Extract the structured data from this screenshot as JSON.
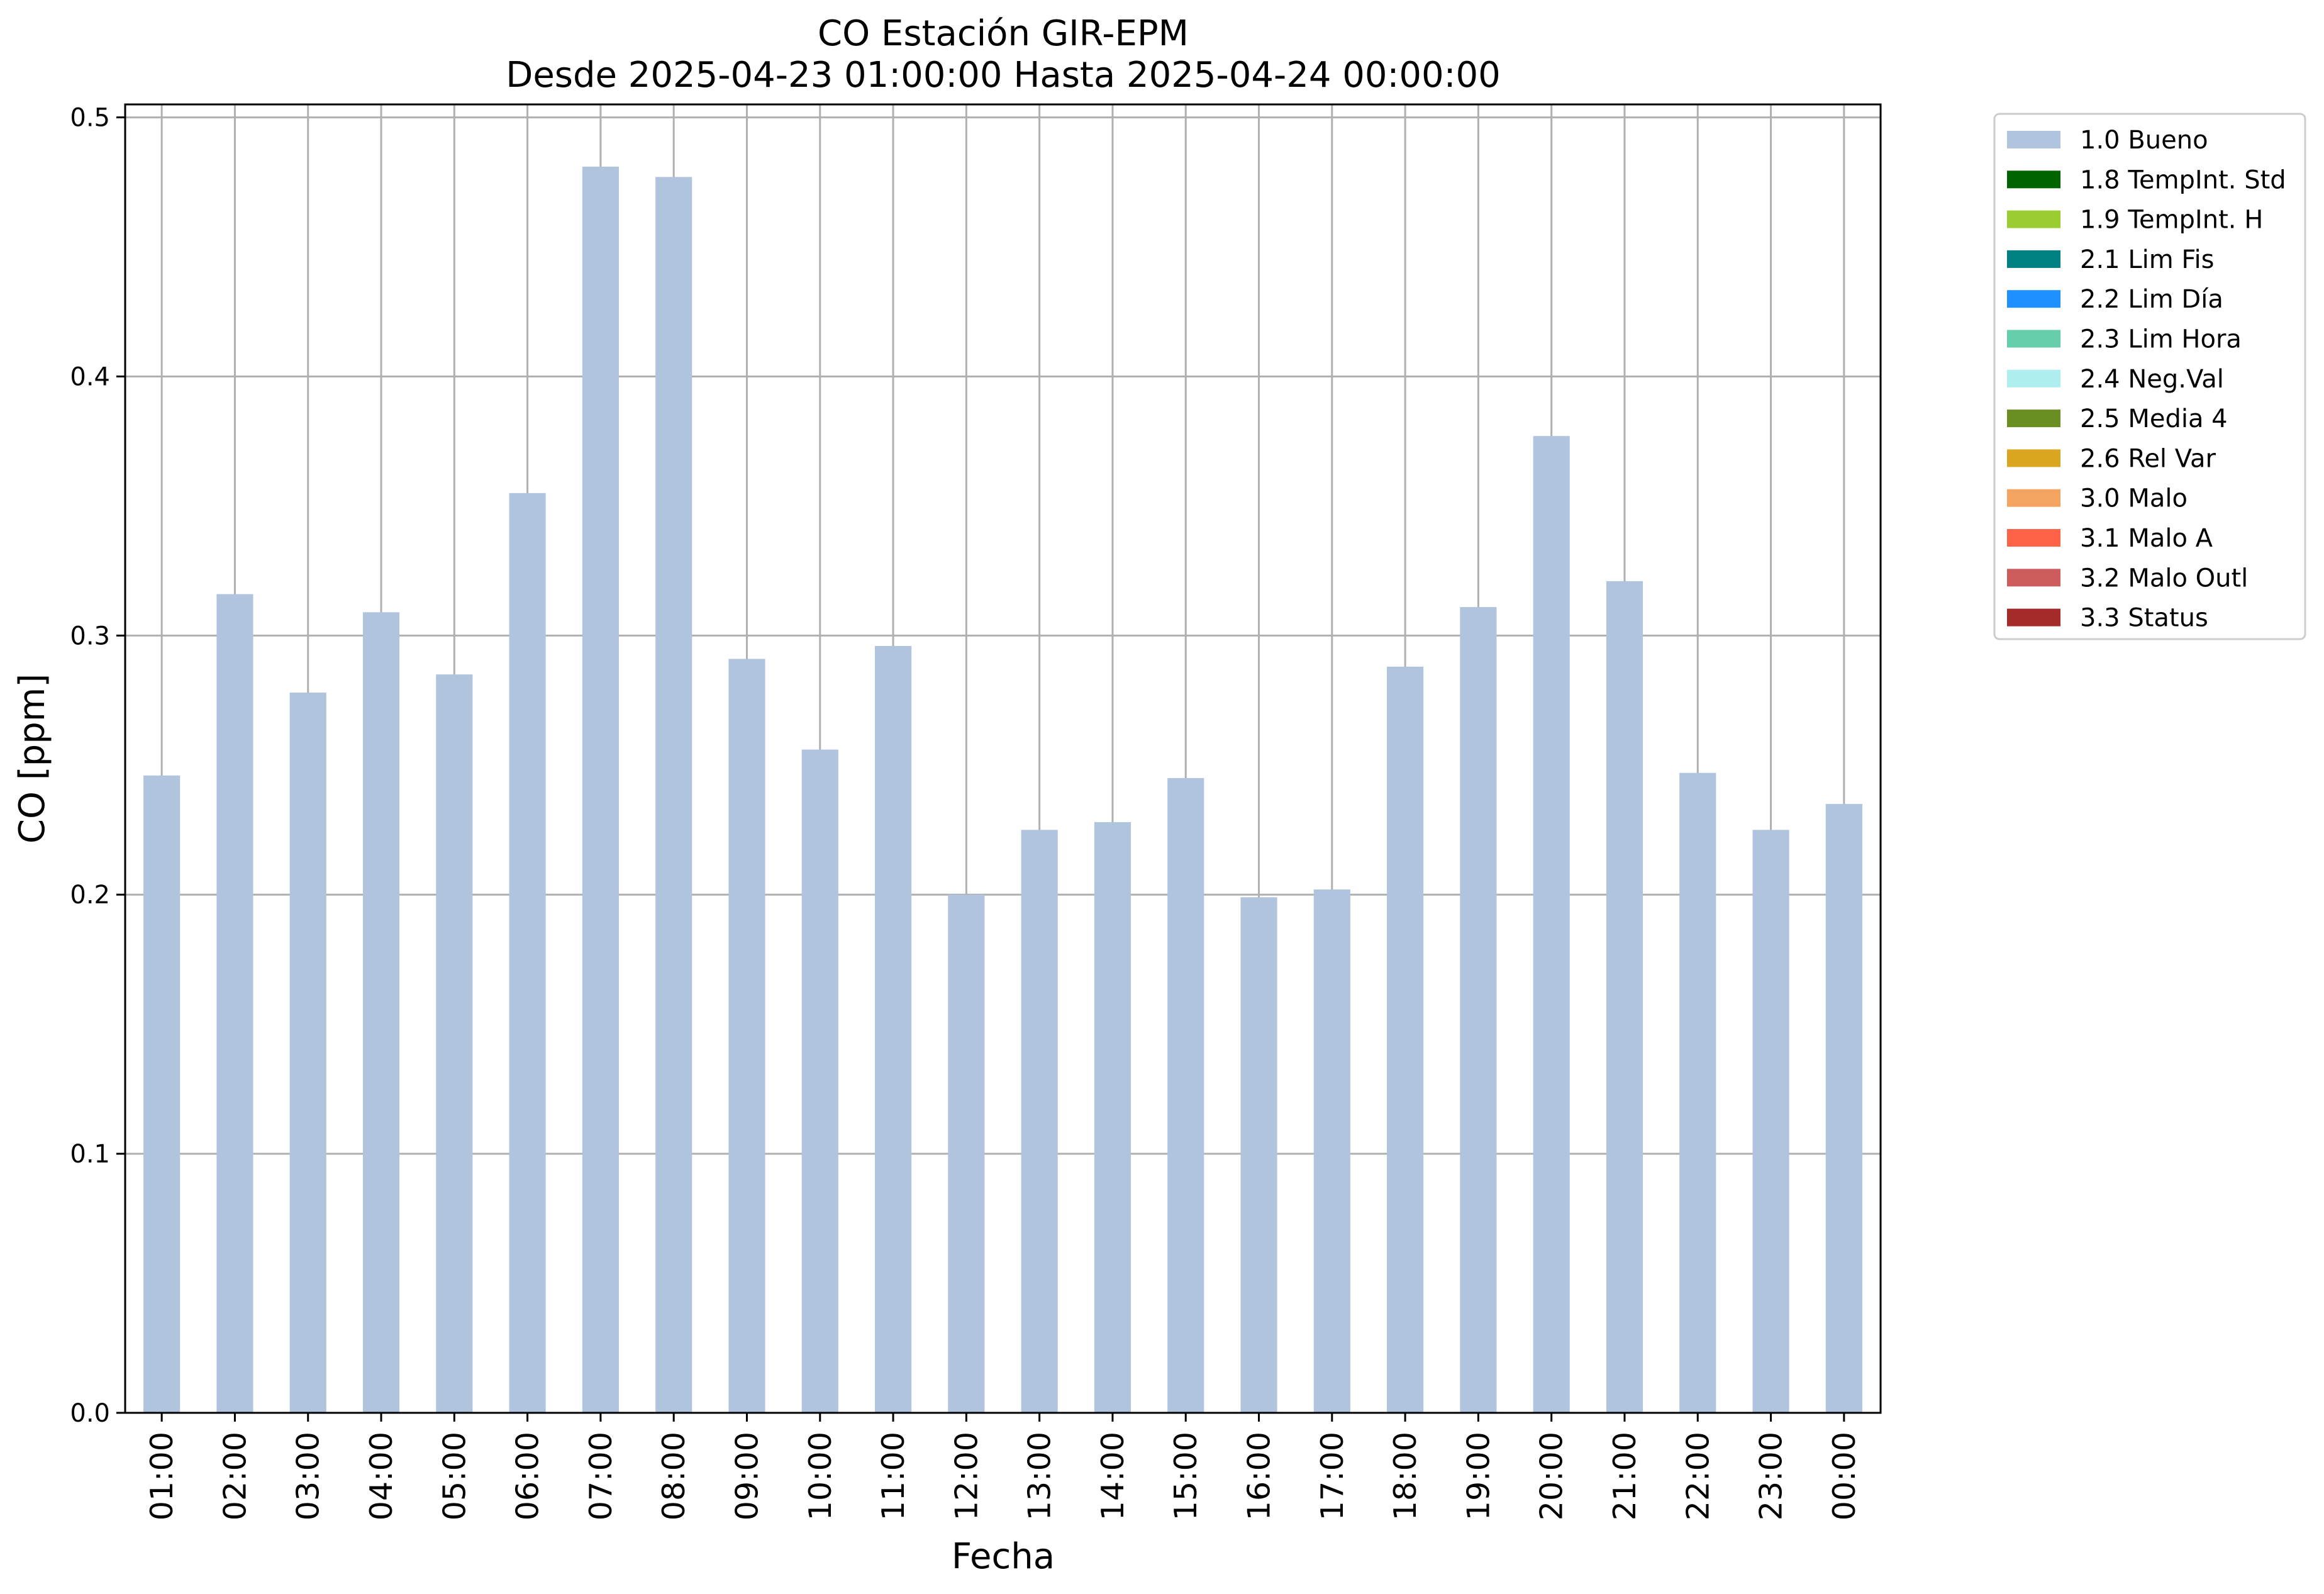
{
  "chart_data": {
    "type": "bar",
    "title": "CO Estación GIR-EPM",
    "subtitle": "Desde 2025-04-23 01:00:00 Hasta 2025-04-24 00:00:00",
    "xlabel": "Fecha",
    "ylabel": "CO [ppm]",
    "ylim": [
      0,
      0.505
    ],
    "yticks": [
      "0.0",
      "0.1",
      "0.2",
      "0.3",
      "0.4",
      "0.5"
    ],
    "grid": true,
    "legend_position": "outside-right",
    "categories": [
      "01:00",
      "02:00",
      "03:00",
      "04:00",
      "05:00",
      "06:00",
      "07:00",
      "08:00",
      "09:00",
      "10:00",
      "11:00",
      "12:00",
      "13:00",
      "14:00",
      "15:00",
      "16:00",
      "17:00",
      "18:00",
      "19:00",
      "20:00",
      "21:00",
      "22:00",
      "23:00",
      "00:00"
    ],
    "series": [
      {
        "name": "1.0 Bueno",
        "color": "#b0c4de",
        "values": [
          0.246,
          0.316,
          0.278,
          0.309,
          0.285,
          0.355,
          0.481,
          0.477,
          0.291,
          0.256,
          0.296,
          0.2,
          0.225,
          0.228,
          0.245,
          0.199,
          0.202,
          0.288,
          0.311,
          0.377,
          0.321,
          0.247,
          0.225,
          0.235
        ]
      }
    ],
    "legend": [
      {
        "label": "1.0 Bueno",
        "color": "#b0c4de"
      },
      {
        "label": "1.8 TempInt. Std",
        "color": "#006400"
      },
      {
        "label": "1.9 TempInt. H",
        "color": "#9acd32"
      },
      {
        "label": "2.1 Lim Fis",
        "color": "#008080"
      },
      {
        "label": "2.2 Lim Día",
        "color": "#1e90ff"
      },
      {
        "label": "2.3 Lim Hora",
        "color": "#66cdaa"
      },
      {
        "label": "2.4 Neg.Val",
        "color": "#afeeee"
      },
      {
        "label": "2.5 Media 4",
        "color": "#6b8e23"
      },
      {
        "label": "2.6 Rel Var",
        "color": "#daa520"
      },
      {
        "label": "3.0 Malo",
        "color": "#f4a460"
      },
      {
        "label": "3.1 Malo A",
        "color": "#ff6347"
      },
      {
        "label": "3.2 Malo Outl",
        "color": "#cd5c5c"
      },
      {
        "label": "3.3 Status",
        "color": "#a52a2a"
      }
    ]
  }
}
